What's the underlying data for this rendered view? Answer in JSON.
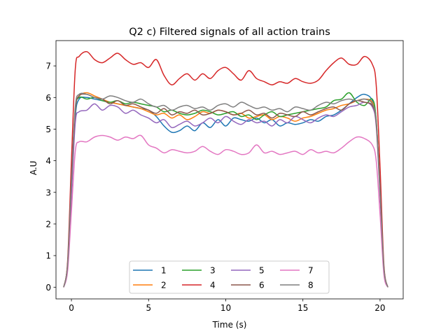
{
  "chart_data": {
    "type": "line",
    "title": "Q2 c) Filtered signals of all action trains",
    "xlabel": "Time (s)",
    "ylabel": "A.U",
    "xlim": [
      -1.0,
      21.5
    ],
    "ylim": [
      -0.37,
      7.8
    ],
    "xticks": [
      0,
      5,
      10,
      15,
      20
    ],
    "yticks": [
      0,
      1,
      2,
      3,
      4,
      5,
      6,
      7
    ],
    "grid": false,
    "legend": {
      "placement": "lower center",
      "columns": 4
    },
    "x": [
      -0.5,
      -0.25,
      0,
      0.25,
      0.5,
      1,
      1.5,
      2,
      2.5,
      3,
      3.5,
      4,
      4.5,
      5,
      5.5,
      6,
      6.5,
      7,
      7.5,
      8,
      8.5,
      9,
      9.5,
      10,
      10.5,
      11,
      11.5,
      12,
      12.5,
      13,
      13.5,
      14,
      14.5,
      15,
      15.5,
      16,
      16.5,
      17,
      17.5,
      18,
      18.5,
      19,
      19.5,
      19.75,
      20,
      20.25,
      20.5
    ],
    "series": [
      {
        "name": "1",
        "color": "#1f77b4",
        "values": [
          0,
          0.7,
          3.2,
          5.4,
          5.95,
          6.0,
          5.95,
          5.9,
          5.85,
          5.8,
          5.75,
          5.7,
          5.65,
          5.6,
          5.4,
          5.1,
          4.9,
          4.95,
          5.1,
          4.95,
          5.2,
          5.05,
          5.3,
          5.1,
          5.35,
          5.3,
          5.25,
          5.35,
          5.2,
          5.3,
          5.1,
          5.2,
          5.15,
          5.2,
          5.3,
          5.25,
          5.4,
          5.45,
          5.6,
          5.8,
          6.0,
          6.1,
          5.9,
          5.2,
          3.0,
          0.6,
          0
        ]
      },
      {
        "name": "2",
        "color": "#ff7f0e",
        "values": [
          0,
          0.7,
          3.3,
          5.6,
          6.05,
          6.15,
          6.05,
          5.95,
          5.85,
          5.8,
          5.75,
          5.7,
          5.65,
          5.55,
          5.45,
          5.5,
          5.35,
          5.45,
          5.3,
          5.4,
          5.55,
          5.5,
          5.6,
          5.55,
          5.45,
          5.5,
          5.35,
          5.4,
          5.45,
          5.3,
          5.4,
          5.35,
          5.25,
          5.35,
          5.4,
          5.5,
          5.6,
          5.65,
          5.75,
          5.8,
          5.9,
          5.95,
          5.85,
          5.3,
          3.1,
          0.6,
          0
        ]
      },
      {
        "name": "3",
        "color": "#2ca02c",
        "values": [
          0,
          0.7,
          3.3,
          5.6,
          6.0,
          5.95,
          6.0,
          5.9,
          5.85,
          5.9,
          5.8,
          5.85,
          5.8,
          5.75,
          5.7,
          5.55,
          5.6,
          5.5,
          5.45,
          5.5,
          5.6,
          5.55,
          5.45,
          5.5,
          5.55,
          5.4,
          5.45,
          5.3,
          5.45,
          5.55,
          5.4,
          5.45,
          5.5,
          5.55,
          5.6,
          5.65,
          5.7,
          5.9,
          5.95,
          6.15,
          5.85,
          5.75,
          5.95,
          5.3,
          3.1,
          0.6,
          0
        ]
      },
      {
        "name": "4",
        "color": "#d62728",
        "values": [
          0,
          0.8,
          4.0,
          6.9,
          7.3,
          7.45,
          7.2,
          7.1,
          7.25,
          7.4,
          7.2,
          7.05,
          7.1,
          6.95,
          7.2,
          6.7,
          6.4,
          6.6,
          6.75,
          6.55,
          6.75,
          6.6,
          6.85,
          6.95,
          6.75,
          6.55,
          6.85,
          6.6,
          6.5,
          6.4,
          6.5,
          6.45,
          6.6,
          6.5,
          6.45,
          6.55,
          6.85,
          7.1,
          7.25,
          7.05,
          7.05,
          7.3,
          7.05,
          6.4,
          3.8,
          0.7,
          0
        ]
      },
      {
        "name": "5",
        "color": "#9467bd",
        "values": [
          0,
          0.6,
          2.9,
          5.2,
          5.55,
          5.6,
          5.8,
          5.6,
          5.75,
          5.7,
          5.5,
          5.6,
          5.45,
          5.35,
          5.2,
          5.3,
          5.05,
          5.15,
          5.25,
          5.1,
          5.2,
          5.35,
          5.2,
          5.4,
          5.25,
          5.15,
          5.3,
          5.2,
          5.25,
          5.1,
          5.3,
          5.2,
          5.4,
          5.3,
          5.2,
          5.35,
          5.45,
          5.4,
          5.55,
          5.7,
          5.75,
          5.85,
          5.7,
          5.1,
          2.9,
          0.5,
          0
        ]
      },
      {
        "name": "6",
        "color": "#8c564b",
        "values": [
          0,
          0.7,
          3.3,
          5.6,
          6.05,
          6.1,
          6.0,
          5.95,
          5.8,
          5.9,
          5.75,
          5.8,
          5.7,
          5.6,
          5.5,
          5.65,
          5.45,
          5.55,
          5.5,
          5.6,
          5.45,
          5.5,
          5.6,
          5.55,
          5.45,
          5.5,
          5.6,
          5.45,
          5.5,
          5.35,
          5.5,
          5.45,
          5.4,
          5.55,
          5.45,
          5.55,
          5.65,
          5.7,
          5.6,
          5.8,
          5.9,
          5.85,
          5.75,
          5.2,
          3.0,
          0.6,
          0
        ]
      },
      {
        "name": "7",
        "color": "#e377c2",
        "values": [
          0,
          0.5,
          2.4,
          4.3,
          4.6,
          4.6,
          4.75,
          4.8,
          4.75,
          4.65,
          4.75,
          4.7,
          4.8,
          4.5,
          4.4,
          4.25,
          4.35,
          4.3,
          4.25,
          4.3,
          4.45,
          4.3,
          4.2,
          4.35,
          4.3,
          4.2,
          4.25,
          4.5,
          4.25,
          4.3,
          4.2,
          4.25,
          4.3,
          4.2,
          4.35,
          4.25,
          4.3,
          4.25,
          4.4,
          4.6,
          4.75,
          4.7,
          4.5,
          4.0,
          2.3,
          0.4,
          0
        ]
      },
      {
        "name": "8",
        "color": "#7f7f7f",
        "values": [
          0,
          0.7,
          3.4,
          5.7,
          6.1,
          6.1,
          6.0,
          5.95,
          6.05,
          6.0,
          5.9,
          5.85,
          5.95,
          5.8,
          5.7,
          5.75,
          5.6,
          5.7,
          5.75,
          5.65,
          5.7,
          5.6,
          5.75,
          5.8,
          5.7,
          5.85,
          5.75,
          5.65,
          5.7,
          5.6,
          5.65,
          5.55,
          5.7,
          5.65,
          5.6,
          5.75,
          5.85,
          5.8,
          5.9,
          5.95,
          5.9,
          5.95,
          5.8,
          5.25,
          3.1,
          0.6,
          0
        ]
      }
    ]
  }
}
